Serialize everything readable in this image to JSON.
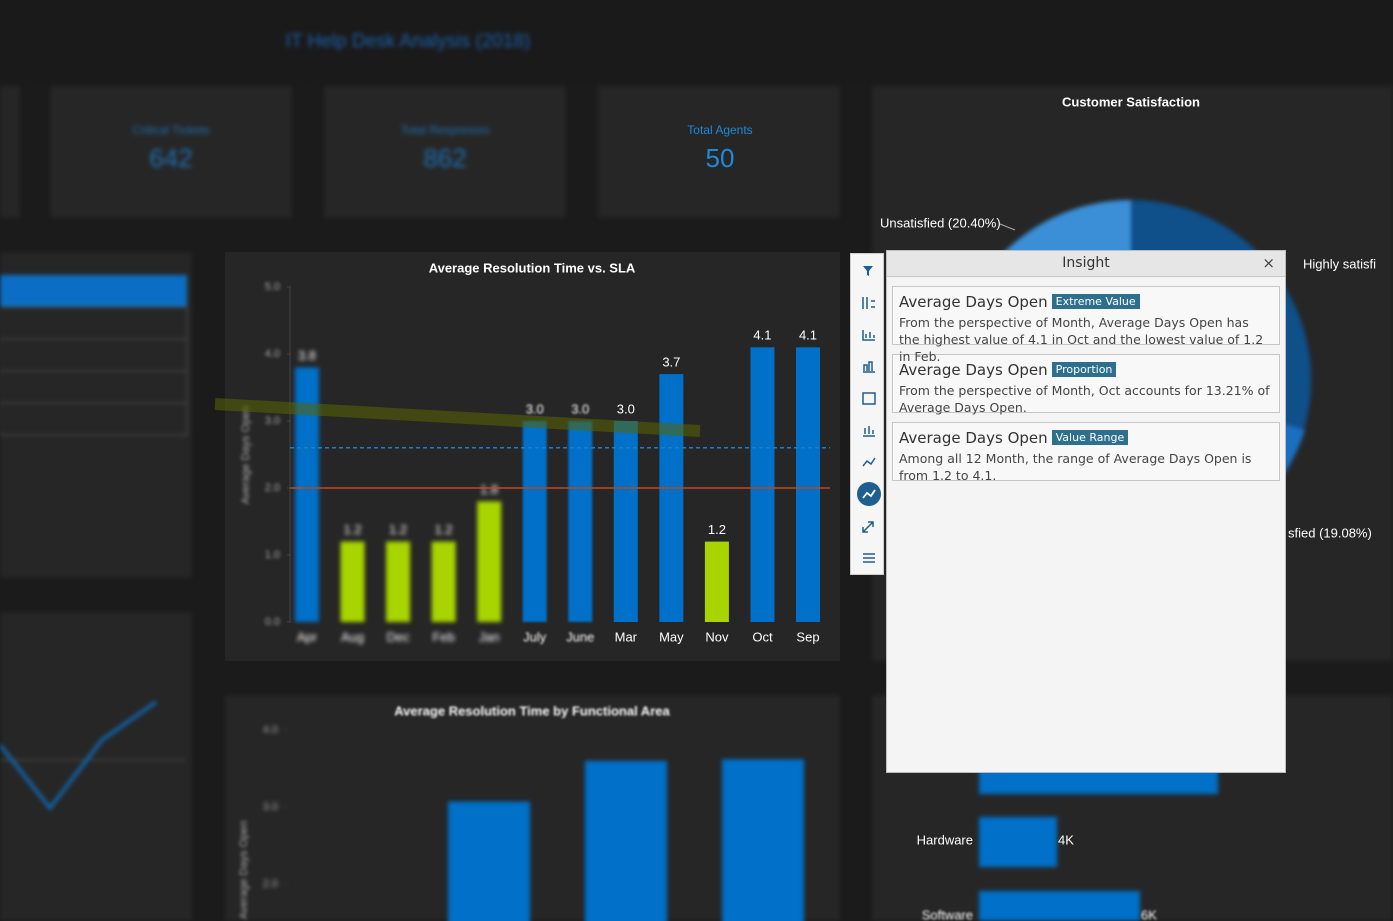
{
  "header": {
    "title": "IT Help Desk Analysis (2018)"
  },
  "kpis": [
    {
      "label": "Critical Tickets",
      "value": "642"
    },
    {
      "label": "Total Responses",
      "value": "862"
    },
    {
      "label": "Total Agents",
      "value": "50"
    }
  ],
  "satisfaction": {
    "title": "Customer Satisfaction",
    "labels": [
      "Unsatisfied (20.40%)",
      "Highly satisfi",
      "sfied (19.08%)"
    ]
  },
  "functional_bars": {
    "labels": [
      "Hardware",
      "4K",
      "Software",
      "6K"
    ]
  },
  "chart_data": [
    {
      "type": "bar",
      "title": "Average Resolution Time vs. SLA",
      "y_label": "Average Days Open",
      "categories": [
        "Apr",
        "Aug",
        "Dec",
        "Feb",
        "Jan",
        "July",
        "June",
        "Mar",
        "May",
        "Nov",
        "Oct",
        "Sep"
      ],
      "values": [
        3.8,
        1.2,
        1.2,
        1.2,
        1.8,
        3.0,
        3.0,
        3.0,
        3.7,
        1.2,
        4.1,
        4.1
      ],
      "value_labels": [
        "3.8",
        "1.2",
        "1.2",
        "1.2",
        "1.8",
        "3.0",
        "3.0",
        "3.0",
        "3.7",
        "1.2",
        "4.1",
        "4.1"
      ],
      "colors": [
        "#0070c8",
        "#a8d400",
        "#a8d400",
        "#a8d400",
        "#a8d400",
        "#0070c8",
        "#0070c8",
        "#0070c8",
        "#0070c8",
        "#a8d400",
        "#0070c8",
        "#0070c8"
      ],
      "ylim": [
        0,
        5
      ],
      "yticks": [
        {
          "value": 0,
          "label": "0.0"
        },
        {
          "value": 1,
          "label": "1.0"
        },
        {
          "value": 2,
          "label": "2.0"
        },
        {
          "value": 3,
          "label": "3.0"
        },
        {
          "value": 4,
          "label": "4.0"
        },
        {
          "value": 5,
          "label": "5.0"
        }
      ],
      "reference_lines": [
        2.6,
        2
      ]
    },
    {
      "type": "bar",
      "title": "Average Resolution Time by Functional Area",
      "y_label": "Average Days Open",
      "categories": [
        null,
        null,
        null
      ],
      "values": [
        3.07,
        3.6,
        3.62
      ],
      "color": "#0070c8",
      "yticks": [
        {
          "value": 2,
          "label": "2.0"
        },
        {
          "value": 3,
          "label": "3.0"
        },
        {
          "value": 4,
          "label": "4.0"
        }
      ]
    }
  ],
  "insight": {
    "title": "Insight",
    "close": "×",
    "cards": [
      {
        "title": "Average Days Open",
        "tag": "Extreme Value",
        "text": "From the perspective of Month, Average Days Open has the highest value of 4.1 in Oct and the lowest value of 1.2 in Feb."
      },
      {
        "title": "Average Days Open",
        "tag": "Proportion",
        "text": "From the perspective of Month, Oct accounts for 13.21% of Average Days Open."
      },
      {
        "title": "Average Days Open",
        "tag": "Value Range",
        "text": "Among all 12 Month, the range of Average Days Open is from 1.2 to 4.1."
      }
    ]
  }
}
